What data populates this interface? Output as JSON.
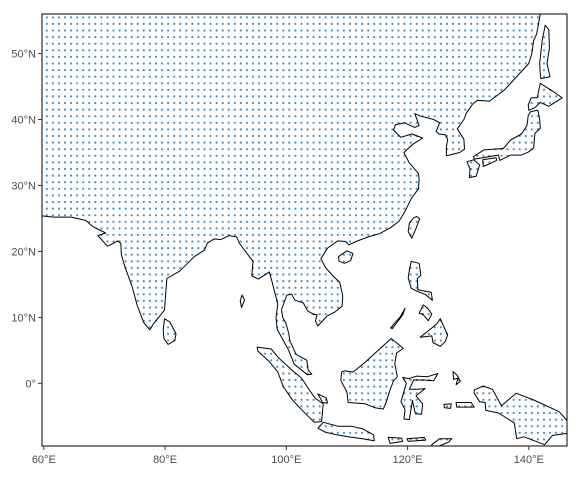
{
  "map": {
    "extent": {
      "lon_min": 59.7,
      "lon_max": 146.3,
      "lat_min": -9.5,
      "lat_max": 56
    },
    "x_ticks": [
      {
        "value": 60,
        "label": "60°E"
      },
      {
        "value": 80,
        "label": "80°E"
      },
      {
        "value": 100,
        "label": "100°E"
      },
      {
        "value": 120,
        "label": "120°E"
      },
      {
        "value": 140,
        "label": "140°E"
      }
    ],
    "y_ticks": [
      {
        "value": 50,
        "label": "50°N"
      },
      {
        "value": 40,
        "label": "40°N"
      },
      {
        "value": 30,
        "label": "30°N"
      },
      {
        "value": 20,
        "label": "20°N"
      },
      {
        "value": 10,
        "label": "10°N"
      },
      {
        "value": 0,
        "label": "0°"
      }
    ],
    "grid_points": {
      "color": "#4a90c8",
      "spacing_lon": 1,
      "spacing_lat": 1,
      "coverage": "land areas within the map extent"
    },
    "coastline_color": "#000000",
    "background": "#ffffff"
  }
}
